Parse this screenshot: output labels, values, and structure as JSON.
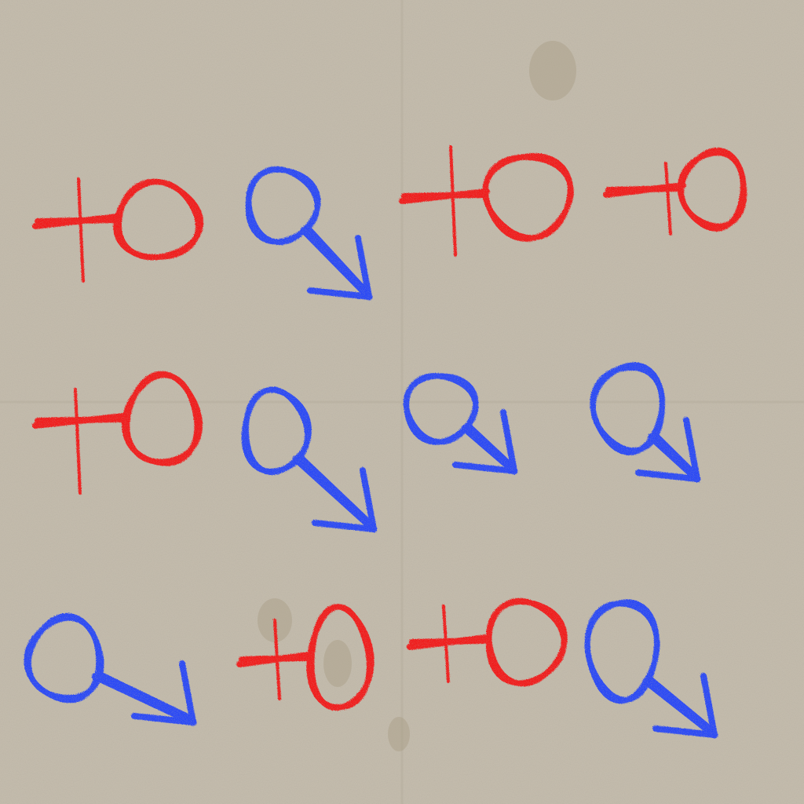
{
  "colors": {
    "paper": "#c5bdae",
    "female": "#f01c1c",
    "male": "#2a48f5"
  },
  "symbols": [
    {
      "kind": "female",
      "icon": "female-symbol-icon"
    },
    {
      "kind": "male",
      "icon": "male-symbol-icon"
    },
    {
      "kind": "female",
      "icon": "female-symbol-icon"
    },
    {
      "kind": "female",
      "icon": "female-symbol-icon"
    },
    {
      "kind": "female",
      "icon": "female-symbol-icon"
    },
    {
      "kind": "male",
      "icon": "male-symbol-icon"
    },
    {
      "kind": "male",
      "icon": "male-symbol-icon"
    },
    {
      "kind": "male",
      "icon": "male-symbol-icon"
    },
    {
      "kind": "male",
      "icon": "male-symbol-icon"
    },
    {
      "kind": "female",
      "icon": "female-symbol-icon"
    },
    {
      "kind": "female",
      "icon": "female-symbol-icon"
    },
    {
      "kind": "male",
      "icon": "male-symbol-icon"
    }
  ]
}
